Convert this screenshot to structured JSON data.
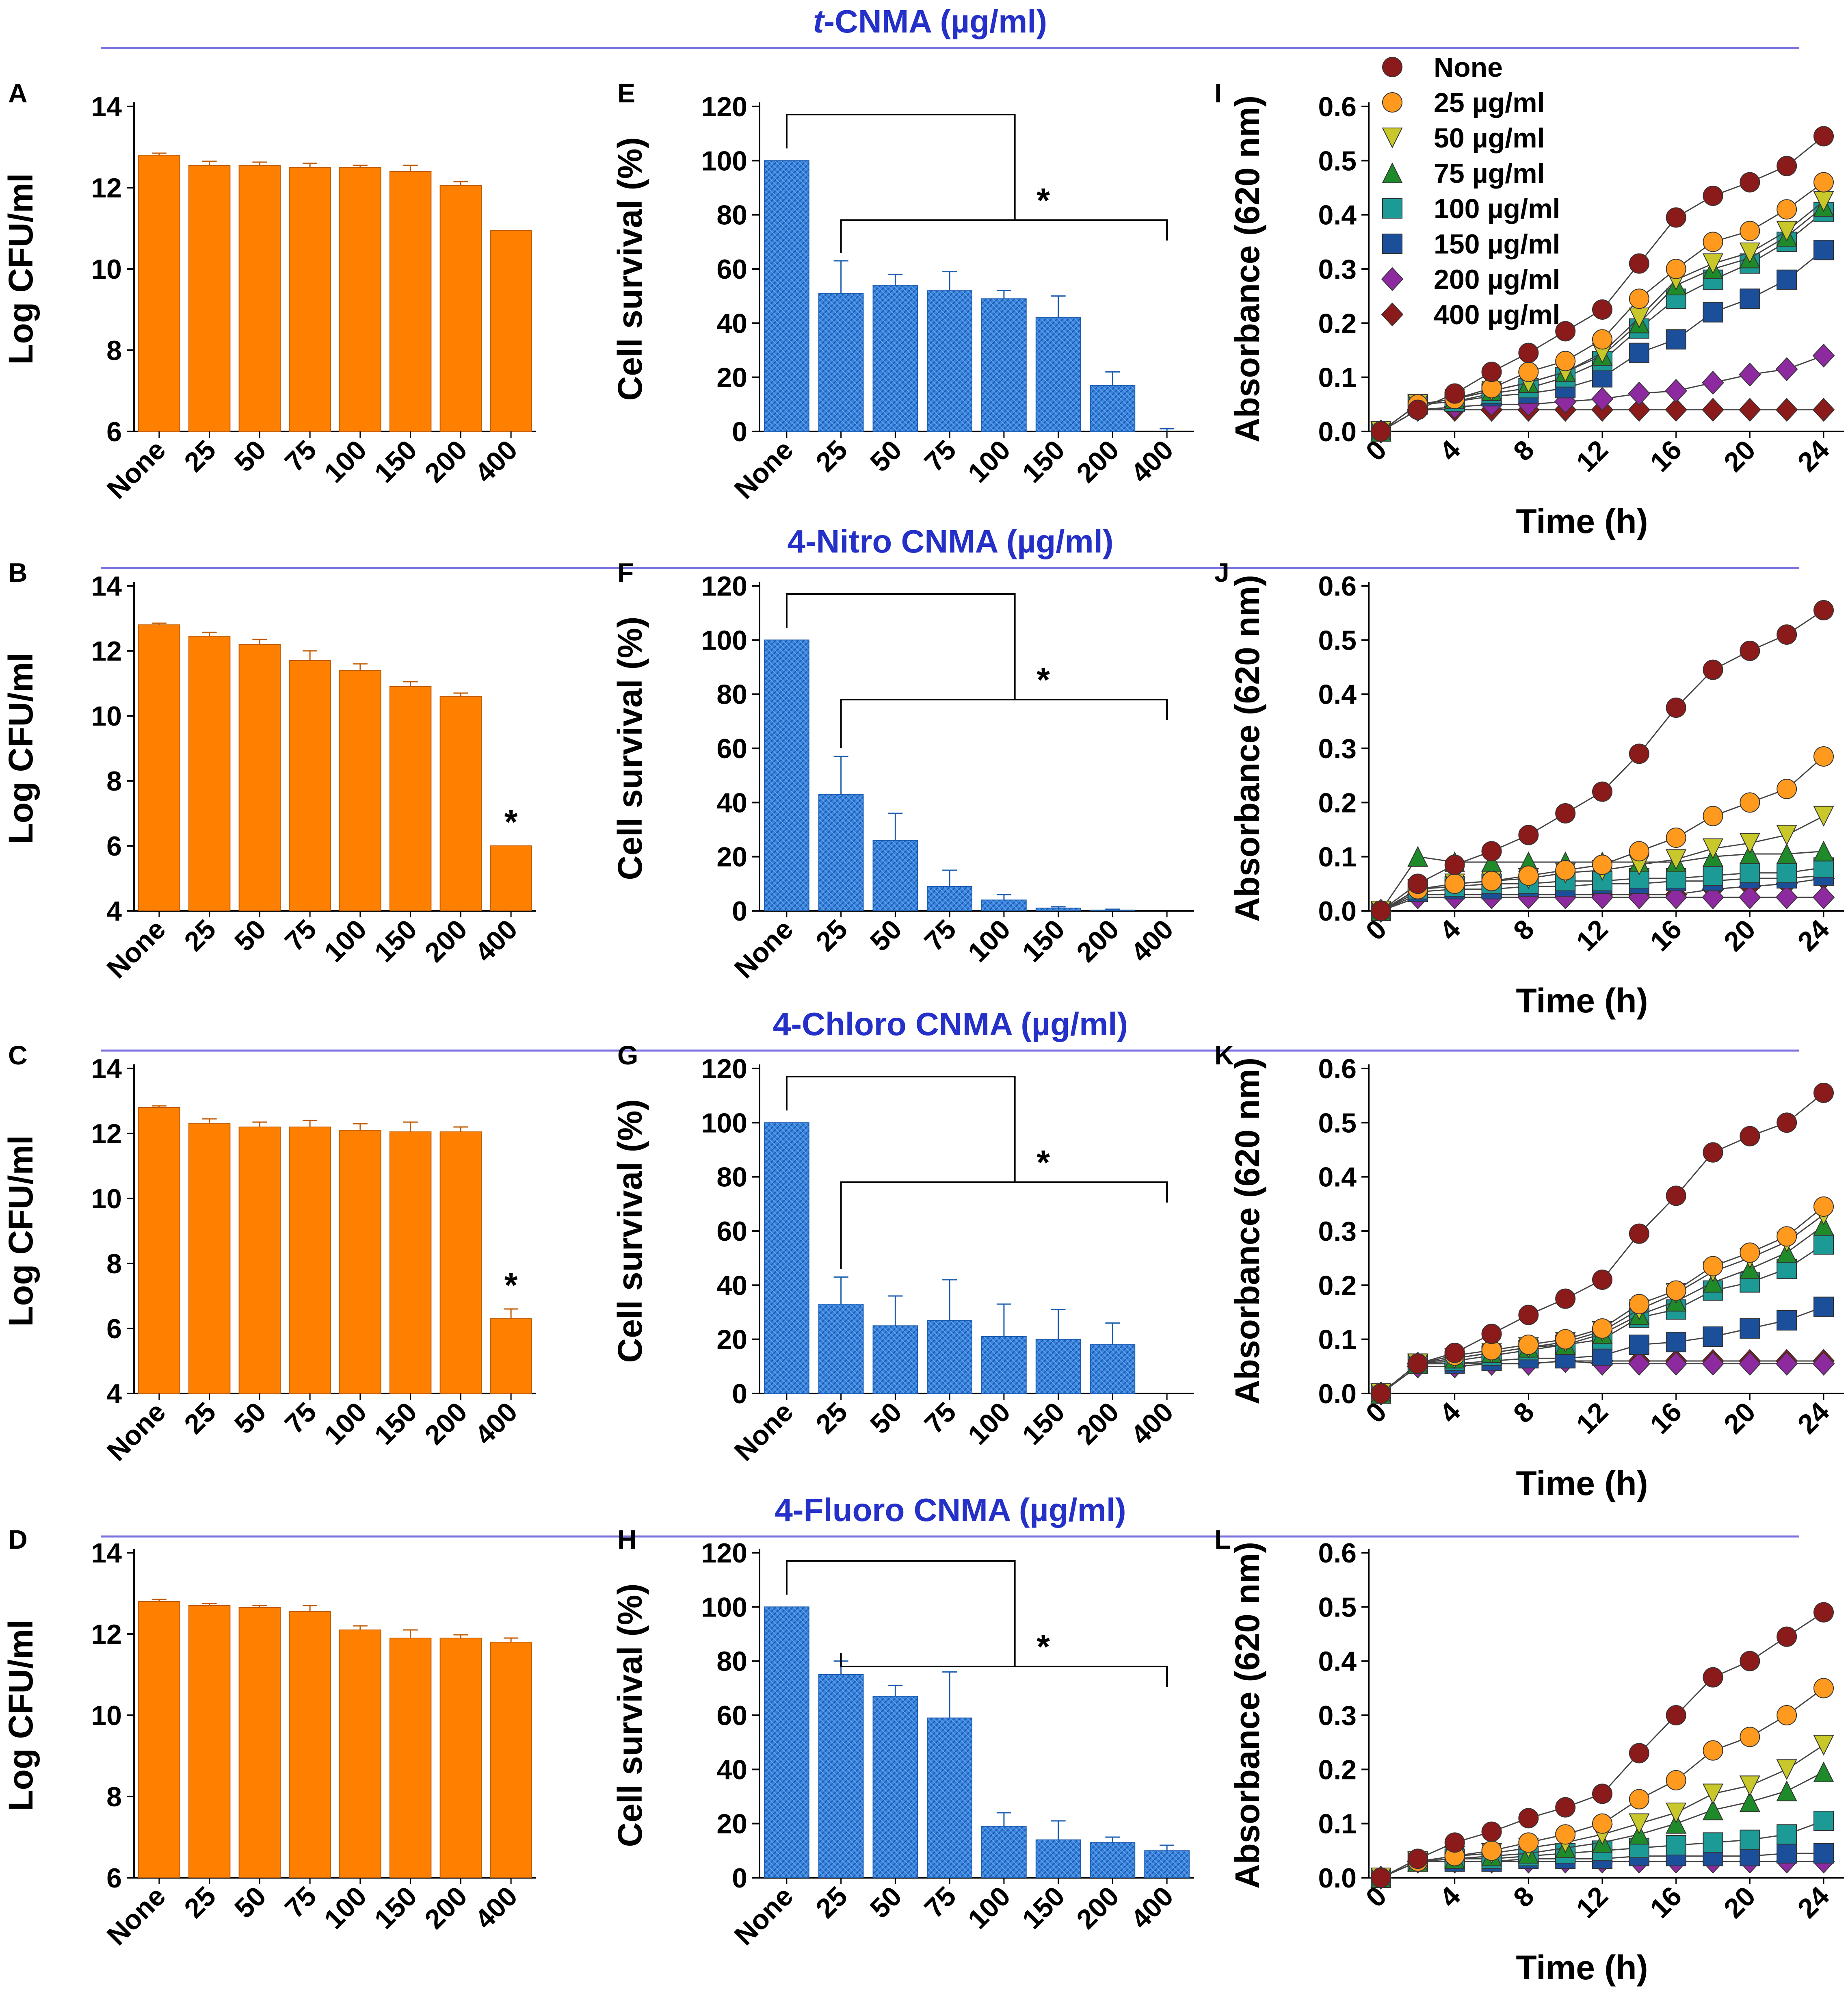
{
  "colors": {
    "section_line": "#7b72e0",
    "section_title": "#2430c8",
    "bar_orange": "#ff8000",
    "bar_blue": "#3a85e0",
    "bar_blue_dark": "#1a5cb0"
  },
  "sections": [
    {
      "title_italic": "t",
      "title_rest": "-CNMA (µg/ml)"
    },
    {
      "title_italic": "",
      "title_rest": "4-Nitro CNMA (µg/ml)"
    },
    {
      "title_italic": "",
      "title_rest": "4-Chloro CNMA (µg/ml)"
    },
    {
      "title_italic": "",
      "title_rest": "4-Fluoro CNMA (µg/ml)"
    }
  ],
  "legend": [
    {
      "label": "None",
      "color": "#8b1a1a",
      "marker": "circle"
    },
    {
      "label": "25 µg/ml",
      "color": "#ff9a1f",
      "marker": "circle"
    },
    {
      "label": "50 µg/ml",
      "color": "#c8c82a",
      "marker": "triangle-down"
    },
    {
      "label": "75 µg/ml",
      "color": "#1f8a2a",
      "marker": "triangle-up"
    },
    {
      "label": "100 µg/ml",
      "color": "#1c9a96",
      "marker": "square"
    },
    {
      "label": "150 µg/ml",
      "color": "#1c4f9a",
      "marker": "square"
    },
    {
      "label": "200 µg/ml",
      "color": "#8e2aa0",
      "marker": "diamond"
    },
    {
      "label": "400 µg/ml",
      "color": "#8b1a1a",
      "marker": "diamond"
    }
  ],
  "chart_data": [
    {
      "panel": "A",
      "type": "bar",
      "ylabel": "Log CFU/ml",
      "xlabel": "",
      "categories": [
        "None",
        "25",
        "50",
        "75",
        "100",
        "150",
        "200",
        "400"
      ],
      "values": [
        12.8,
        12.55,
        12.55,
        12.5,
        12.5,
        12.4,
        12.05,
        10.95
      ],
      "errors": [
        0.05,
        0.1,
        0.08,
        0.1,
        0.05,
        0.15,
        0.1,
        0.0
      ],
      "ylim": [
        6,
        14
      ],
      "yticks": [
        6,
        8,
        10,
        12,
        14
      ],
      "stars": []
    },
    {
      "panel": "B",
      "type": "bar",
      "ylabel": "Log CFU/ml",
      "xlabel": "",
      "categories": [
        "None",
        "25",
        "50",
        "75",
        "100",
        "150",
        "200",
        "400"
      ],
      "values": [
        12.8,
        12.45,
        12.2,
        11.7,
        11.4,
        10.9,
        10.6,
        6.0
      ],
      "errors": [
        0.05,
        0.12,
        0.15,
        0.3,
        0.2,
        0.15,
        0.1,
        0.0
      ],
      "ylim": [
        4,
        14
      ],
      "yticks": [
        4,
        6,
        8,
        10,
        12,
        14
      ],
      "stars": [
        "400"
      ]
    },
    {
      "panel": "C",
      "type": "bar",
      "ylabel": "Log CFU/ml",
      "xlabel": "",
      "categories": [
        "None",
        "25",
        "50",
        "75",
        "100",
        "150",
        "200",
        "400"
      ],
      "values": [
        12.8,
        12.3,
        12.2,
        12.2,
        12.1,
        12.05,
        12.05,
        6.3
      ],
      "errors": [
        0.05,
        0.15,
        0.15,
        0.2,
        0.2,
        0.3,
        0.15,
        0.3
      ],
      "ylim": [
        4,
        14
      ],
      "yticks": [
        4,
        6,
        8,
        10,
        12,
        14
      ],
      "stars": [
        "400"
      ]
    },
    {
      "panel": "D",
      "type": "bar",
      "ylabel": "Log CFU/ml",
      "xlabel": "",
      "categories": [
        "None",
        "25",
        "50",
        "75",
        "100",
        "150",
        "200",
        "400"
      ],
      "values": [
        12.8,
        12.7,
        12.65,
        12.55,
        12.1,
        11.9,
        11.9,
        11.8
      ],
      "errors": [
        0.05,
        0.05,
        0.05,
        0.15,
        0.1,
        0.2,
        0.08,
        0.1
      ],
      "ylim": [
        6,
        14
      ],
      "yticks": [
        6,
        8,
        10,
        12,
        14
      ],
      "stars": []
    },
    {
      "panel": "E",
      "type": "bar",
      "ylabel": "Cell survival (%)",
      "xlabel": "",
      "categories": [
        "None",
        "25",
        "50",
        "75",
        "100",
        "150",
        "200",
        "400"
      ],
      "values": [
        100,
        51,
        54,
        52,
        49,
        42,
        17,
        0
      ],
      "errors": [
        0,
        12,
        4,
        7,
        3,
        8,
        5,
        1
      ],
      "ylim": [
        0,
        120
      ],
      "yticks": [
        0,
        20,
        40,
        60,
        80,
        100,
        120
      ],
      "significance": "*"
    },
    {
      "panel": "F",
      "type": "bar",
      "ylabel": "Cell survival (%)",
      "xlabel": "",
      "categories": [
        "None",
        "25",
        "50",
        "75",
        "100",
        "150",
        "200",
        "400"
      ],
      "values": [
        100,
        43,
        26,
        9,
        4,
        1,
        0.3,
        0
      ],
      "errors": [
        0,
        14,
        10,
        6,
        2,
        0.5,
        0.3,
        0
      ],
      "ylim": [
        0,
        120
      ],
      "yticks": [
        0,
        20,
        40,
        60,
        80,
        100,
        120
      ],
      "significance": "*"
    },
    {
      "panel": "G",
      "type": "bar",
      "ylabel": "Cell survival (%)",
      "xlabel": "",
      "categories": [
        "None",
        "25",
        "50",
        "75",
        "100",
        "150",
        "200",
        "400"
      ],
      "values": [
        100,
        33,
        25,
        27,
        21,
        20,
        18,
        0
      ],
      "errors": [
        0,
        10,
        11,
        15,
        12,
        11,
        8,
        0
      ],
      "ylim": [
        0,
        120
      ],
      "yticks": [
        0,
        20,
        40,
        60,
        80,
        100,
        120
      ],
      "significance": "*"
    },
    {
      "panel": "H",
      "type": "bar",
      "ylabel": "Cell survival (%)",
      "xlabel": "",
      "categories": [
        "None",
        "25",
        "50",
        "75",
        "100",
        "150",
        "200",
        "400"
      ],
      "values": [
        100,
        75,
        67,
        59,
        19,
        14,
        13,
        10
      ],
      "errors": [
        0,
        5,
        4,
        17,
        5,
        7,
        2,
        2
      ],
      "ylim": [
        0,
        120
      ],
      "yticks": [
        0,
        20,
        40,
        60,
        80,
        100,
        120
      ],
      "significance": "*"
    },
    {
      "panel": "I",
      "type": "line",
      "ylabel": "Absorbance (620 nm)",
      "xlabel": "Time (h)",
      "x": [
        0,
        2,
        4,
        6,
        8,
        10,
        12,
        14,
        16,
        18,
        20,
        22,
        24
      ],
      "xticks": [
        0,
        4,
        8,
        12,
        16,
        20,
        24
      ],
      "xlim": [
        0,
        24
      ],
      "ylim": [
        0,
        0.6
      ],
      "yticks": [
        0.0,
        0.1,
        0.2,
        0.3,
        0.4,
        0.5,
        0.6
      ],
      "series": [
        {
          "name": "None",
          "values": [
            0.0,
            0.04,
            0.07,
            0.11,
            0.145,
            0.185,
            0.225,
            0.31,
            0.395,
            0.435,
            0.46,
            0.49,
            0.545
          ]
        },
        {
          "name": "25 µg/ml",
          "values": [
            0.0,
            0.05,
            0.06,
            0.08,
            0.11,
            0.13,
            0.17,
            0.245,
            0.3,
            0.35,
            0.37,
            0.41,
            0.46
          ]
        },
        {
          "name": "50 µg/ml",
          "values": [
            0.0,
            0.05,
            0.06,
            0.075,
            0.09,
            0.11,
            0.145,
            0.21,
            0.28,
            0.31,
            0.33,
            0.37,
            0.425
          ]
        },
        {
          "name": "75 µg/ml",
          "values": [
            0.0,
            0.05,
            0.06,
            0.075,
            0.09,
            0.11,
            0.14,
            0.2,
            0.27,
            0.3,
            0.32,
            0.36,
            0.415
          ]
        },
        {
          "name": "100 µg/ml",
          "values": [
            0.0,
            0.05,
            0.055,
            0.07,
            0.08,
            0.1,
            0.13,
            0.19,
            0.245,
            0.28,
            0.31,
            0.35,
            0.405
          ]
        },
        {
          "name": "150 µg/ml",
          "values": [
            0.0,
            0.05,
            0.055,
            0.065,
            0.07,
            0.08,
            0.1,
            0.145,
            0.17,
            0.22,
            0.245,
            0.28,
            0.335
          ]
        },
        {
          "name": "200 µg/ml",
          "values": [
            0.0,
            0.04,
            0.045,
            0.05,
            0.05,
            0.055,
            0.06,
            0.07,
            0.075,
            0.09,
            0.105,
            0.115,
            0.14
          ]
        },
        {
          "name": "400 µg/ml",
          "values": [
            0.0,
            0.04,
            0.04,
            0.04,
            0.04,
            0.04,
            0.04,
            0.04,
            0.04,
            0.04,
            0.04,
            0.04,
            0.04
          ]
        }
      ]
    },
    {
      "panel": "J",
      "type": "line",
      "ylabel": "Absorbance (620 nm)",
      "xlabel": "Time (h)",
      "x": [
        0,
        2,
        4,
        6,
        8,
        10,
        12,
        14,
        16,
        18,
        20,
        22,
        24
      ],
      "xticks": [
        0,
        4,
        8,
        12,
        16,
        20,
        24
      ],
      "xlim": [
        0,
        24
      ],
      "ylim": [
        0,
        0.6
      ],
      "yticks": [
        0.0,
        0.1,
        0.2,
        0.3,
        0.4,
        0.5,
        0.6
      ],
      "series": [
        {
          "name": "None",
          "values": [
            0.0,
            0.05,
            0.085,
            0.11,
            0.14,
            0.18,
            0.22,
            0.29,
            0.375,
            0.445,
            0.48,
            0.51,
            0.555
          ]
        },
        {
          "name": "25 µg/ml",
          "values": [
            0.0,
            0.04,
            0.05,
            0.055,
            0.065,
            0.075,
            0.085,
            0.11,
            0.135,
            0.175,
            0.2,
            0.225,
            0.285
          ]
        },
        {
          "name": "50 µg/ml",
          "values": [
            0.0,
            0.04,
            0.05,
            0.055,
            0.06,
            0.07,
            0.075,
            0.085,
            0.095,
            0.115,
            0.125,
            0.14,
            0.175
          ]
        },
        {
          "name": "75 µg/ml",
          "values": [
            0.0,
            0.1,
            0.09,
            0.09,
            0.09,
            0.09,
            0.09,
            0.09,
            0.09,
            0.1,
            0.105,
            0.105,
            0.11
          ]
        },
        {
          "name": "100 µg/ml",
          "values": [
            0.0,
            0.04,
            0.045,
            0.05,
            0.05,
            0.055,
            0.055,
            0.06,
            0.06,
            0.065,
            0.07,
            0.07,
            0.08
          ]
        },
        {
          "name": "150 µg/ml",
          "values": [
            0.0,
            0.035,
            0.04,
            0.04,
            0.045,
            0.045,
            0.05,
            0.05,
            0.055,
            0.055,
            0.06,
            0.06,
            0.065
          ]
        },
        {
          "name": "200 µg/ml",
          "values": [
            0.0,
            0.025,
            0.025,
            0.025,
            0.025,
            0.025,
            0.025,
            0.025,
            0.025,
            0.025,
            0.025,
            0.025,
            0.025
          ]
        },
        {
          "name": "400 µg/ml",
          "values": [
            0.0,
            0.03,
            0.03,
            0.03,
            0.03,
            0.03,
            0.03,
            0.03,
            0.03,
            0.04,
            0.045,
            0.05,
            0.06
          ]
        }
      ]
    },
    {
      "panel": "K",
      "type": "line",
      "ylabel": "Absorbance (620 nm)",
      "xlabel": "Time (h)",
      "x": [
        0,
        2,
        4,
        6,
        8,
        10,
        12,
        14,
        16,
        18,
        20,
        22,
        24
      ],
      "xticks": [
        0,
        4,
        8,
        12,
        16,
        20,
        24
      ],
      "xlim": [
        0,
        24
      ],
      "ylim": [
        0,
        0.6
      ],
      "yticks": [
        0.0,
        0.1,
        0.2,
        0.3,
        0.4,
        0.5,
        0.6
      ],
      "series": [
        {
          "name": "None",
          "values": [
            0.0,
            0.055,
            0.075,
            0.11,
            0.145,
            0.175,
            0.21,
            0.295,
            0.365,
            0.445,
            0.475,
            0.5,
            0.555
          ]
        },
        {
          "name": "25 µg/ml",
          "values": [
            0.0,
            0.055,
            0.07,
            0.08,
            0.09,
            0.1,
            0.12,
            0.165,
            0.19,
            0.235,
            0.26,
            0.29,
            0.345
          ]
        },
        {
          "name": "50 µg/ml",
          "values": [
            0.0,
            0.055,
            0.065,
            0.075,
            0.085,
            0.095,
            0.115,
            0.155,
            0.185,
            0.225,
            0.25,
            0.28,
            0.33
          ]
        },
        {
          "name": "75 µg/ml",
          "values": [
            0.0,
            0.055,
            0.065,
            0.075,
            0.085,
            0.09,
            0.11,
            0.145,
            0.17,
            0.205,
            0.23,
            0.26,
            0.31
          ]
        },
        {
          "name": "100 µg/ml",
          "values": [
            0.0,
            0.055,
            0.06,
            0.07,
            0.08,
            0.09,
            0.1,
            0.14,
            0.155,
            0.19,
            0.205,
            0.23,
            0.275
          ]
        },
        {
          "name": "150 µg/ml",
          "values": [
            0.0,
            0.055,
            0.055,
            0.06,
            0.065,
            0.065,
            0.07,
            0.09,
            0.095,
            0.105,
            0.12,
            0.135,
            0.16
          ]
        },
        {
          "name": "200 µg/ml",
          "values": [
            0.0,
            0.05,
            0.05,
            0.055,
            0.055,
            0.06,
            0.055,
            0.055,
            0.055,
            0.055,
            0.055,
            0.055,
            0.055
          ]
        },
        {
          "name": "400 µg/ml",
          "values": [
            0.0,
            0.055,
            0.055,
            0.055,
            0.055,
            0.06,
            0.06,
            0.06,
            0.06,
            0.06,
            0.06,
            0.06,
            0.06
          ]
        }
      ]
    },
    {
      "panel": "L",
      "type": "line",
      "ylabel": "Absorbance (620 nm)",
      "xlabel": "Time (h)",
      "x": [
        0,
        2,
        4,
        6,
        8,
        10,
        12,
        14,
        16,
        18,
        20,
        22,
        24
      ],
      "xticks": [
        0,
        4,
        8,
        12,
        16,
        20,
        24
      ],
      "xlim": [
        0,
        24
      ],
      "ylim": [
        0,
        0.6
      ],
      "yticks": [
        0.0,
        0.1,
        0.2,
        0.3,
        0.4,
        0.5,
        0.6
      ],
      "series": [
        {
          "name": "None",
          "values": [
            0.0,
            0.035,
            0.065,
            0.085,
            0.11,
            0.13,
            0.155,
            0.23,
            0.3,
            0.37,
            0.4,
            0.445,
            0.49
          ]
        },
        {
          "name": "25 µg/ml",
          "values": [
            0.0,
            0.03,
            0.04,
            0.05,
            0.065,
            0.08,
            0.1,
            0.145,
            0.18,
            0.235,
            0.26,
            0.3,
            0.35
          ]
        },
        {
          "name": "50 µg/ml",
          "values": [
            0.0,
            0.03,
            0.04,
            0.045,
            0.055,
            0.065,
            0.08,
            0.1,
            0.12,
            0.155,
            0.17,
            0.2,
            0.245
          ]
        },
        {
          "name": "75 µg/ml",
          "values": [
            0.0,
            0.03,
            0.035,
            0.04,
            0.045,
            0.055,
            0.065,
            0.08,
            0.1,
            0.125,
            0.14,
            0.16,
            0.195
          ]
        },
        {
          "name": "100 µg/ml",
          "values": [
            0.0,
            0.03,
            0.035,
            0.035,
            0.04,
            0.045,
            0.05,
            0.055,
            0.06,
            0.065,
            0.07,
            0.08,
            0.105
          ]
        },
        {
          "name": "150 µg/ml",
          "values": [
            0.0,
            0.03,
            0.03,
            0.03,
            0.035,
            0.035,
            0.035,
            0.04,
            0.04,
            0.04,
            0.04,
            0.045,
            0.045
          ]
        },
        {
          "name": "200 µg/ml",
          "values": [
            0.0,
            0.03,
            0.03,
            0.03,
            0.03,
            0.03,
            0.03,
            0.03,
            0.03,
            0.03,
            0.03,
            0.03,
            0.03
          ]
        },
        {
          "name": "400 µg/ml",
          "values": [
            0.0,
            0.03,
            0.03,
            0.03,
            0.03,
            0.03,
            0.03,
            0.03,
            0.03,
            0.03,
            0.03,
            0.03,
            0.03
          ]
        }
      ]
    }
  ]
}
